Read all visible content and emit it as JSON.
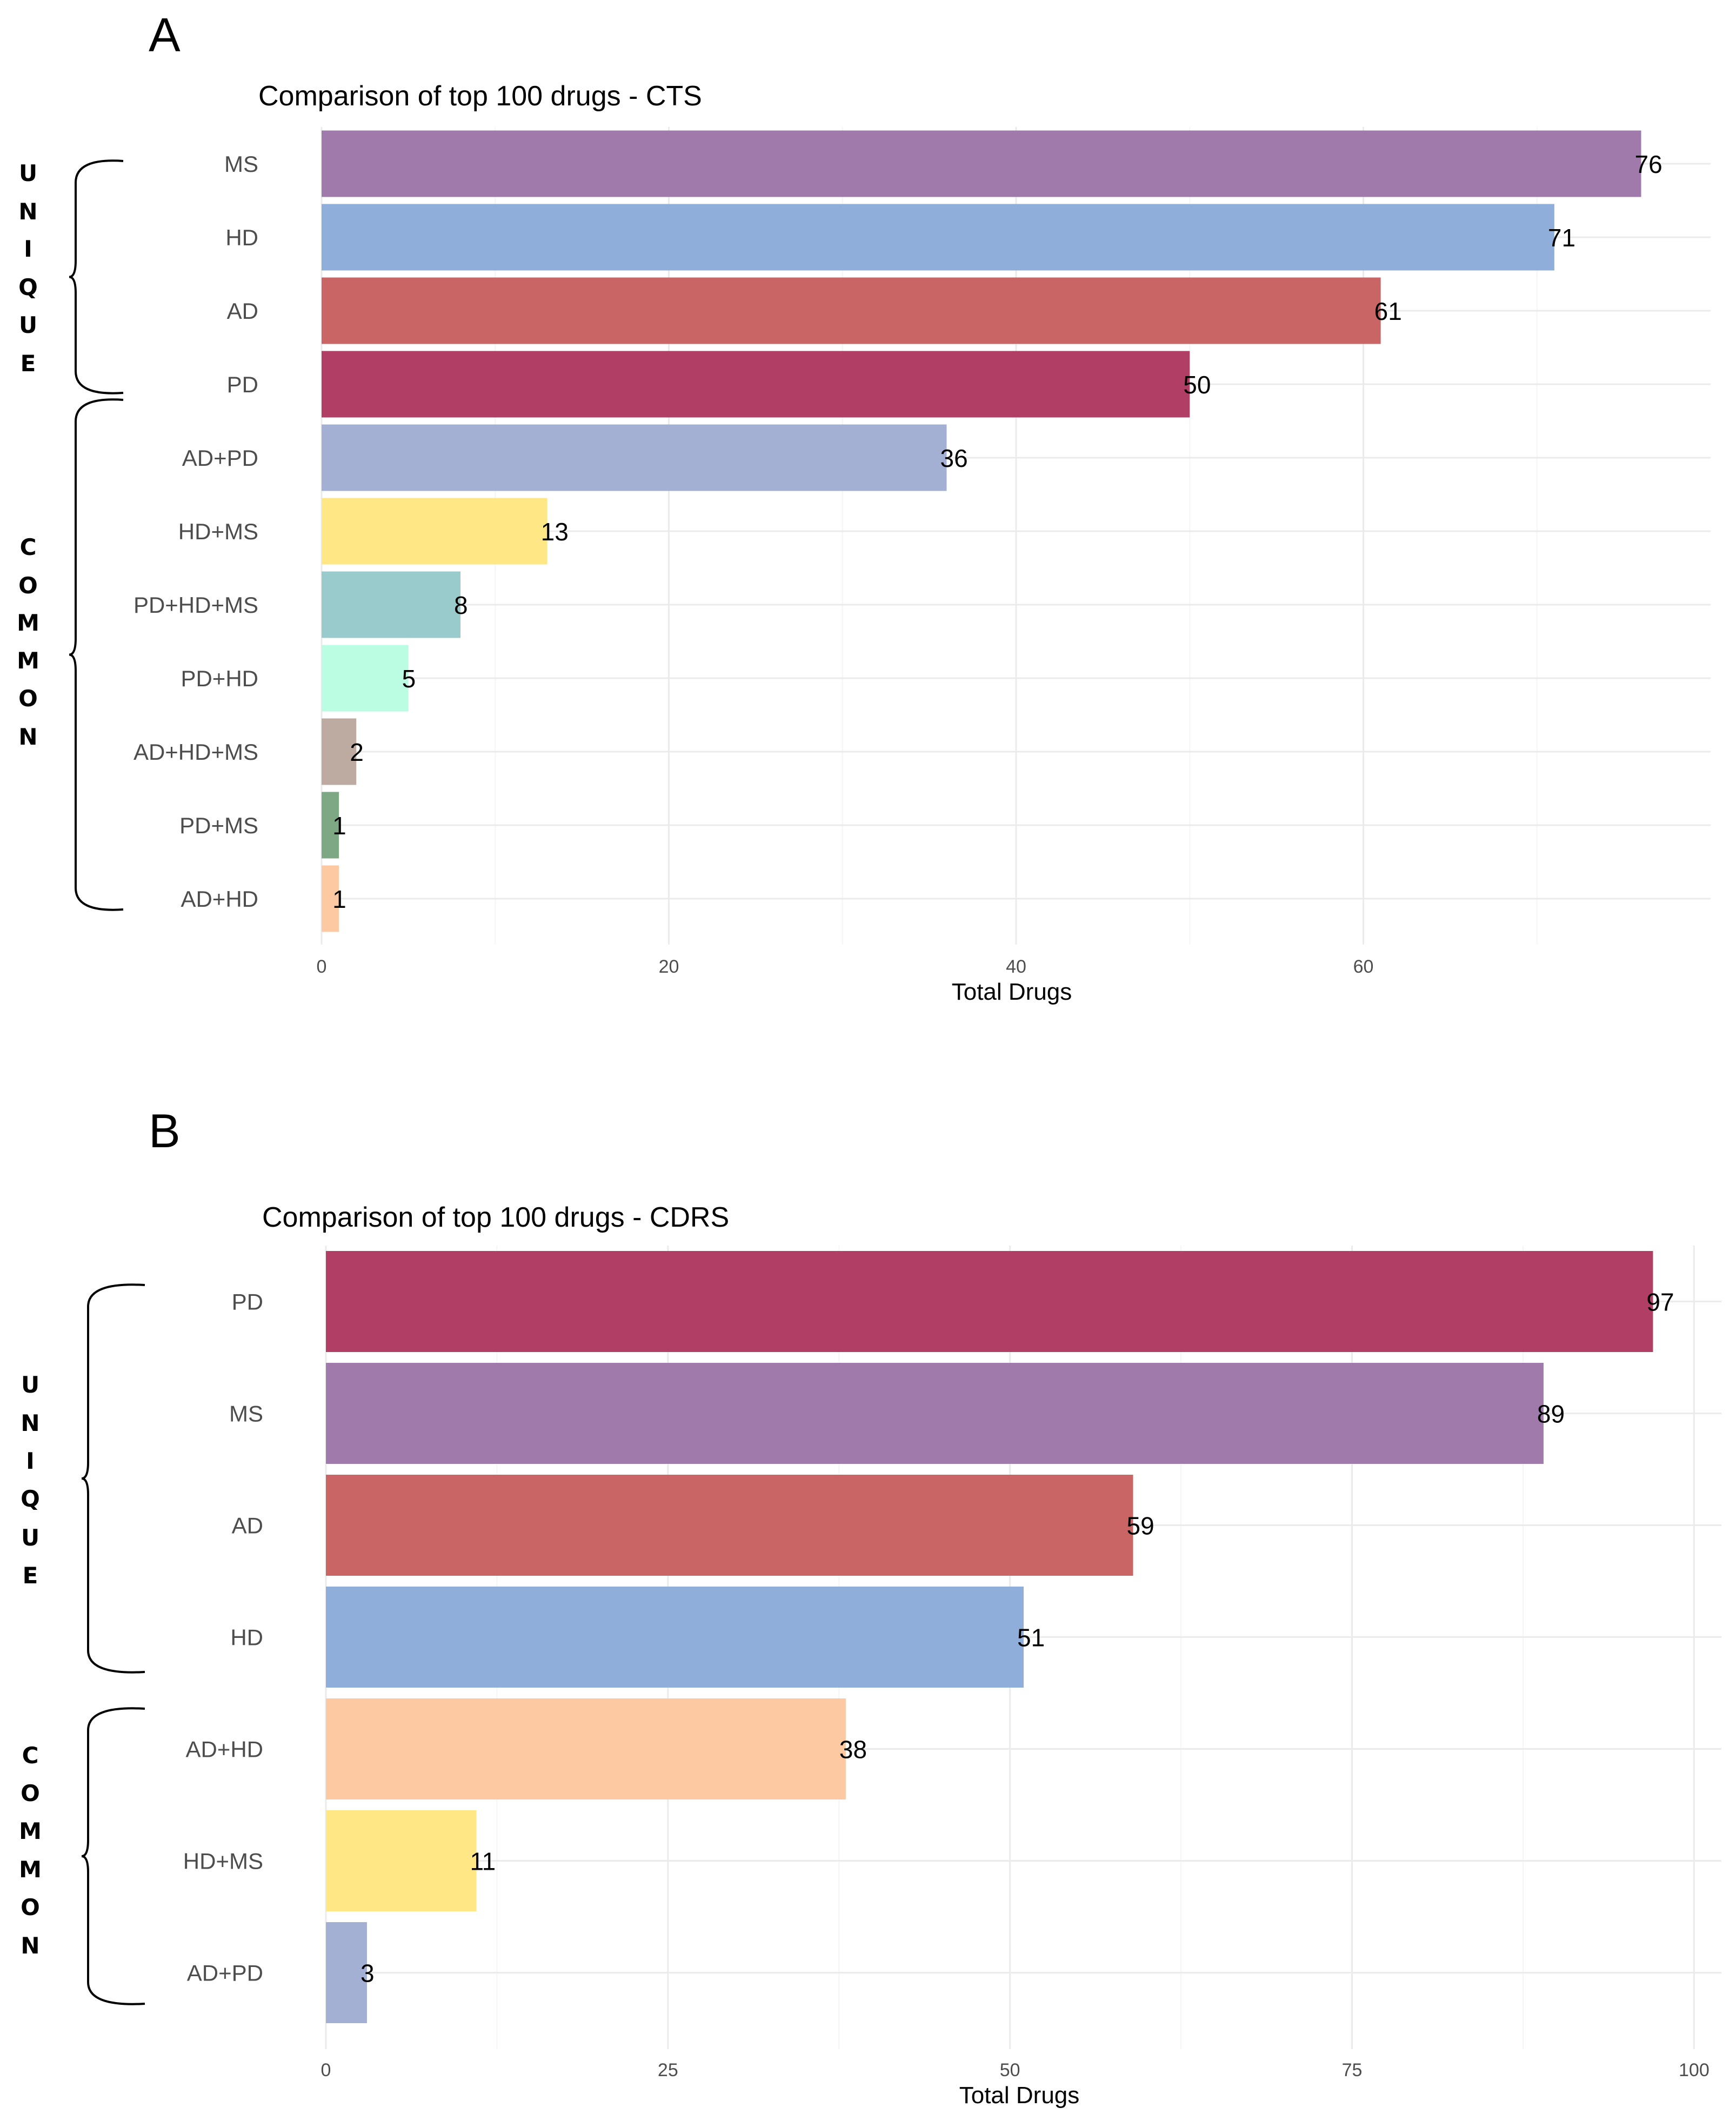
{
  "chart_data": [
    {
      "panel": "A",
      "type": "bar",
      "orientation": "horizontal",
      "title": "Comparison of top 100 drugs - CTS",
      "xlabel": "Total Drugs",
      "ylabel": "",
      "xlim": [
        0,
        80
      ],
      "xticks": [
        0,
        20,
        40,
        60
      ],
      "grid": true,
      "categories": [
        "MS",
        "HD",
        "AD",
        "PD",
        "AD+PD",
        "HD+MS",
        "PD+HD+MS",
        "PD+HD",
        "AD+HD+MS",
        "PD+MS",
        "AD+HD"
      ],
      "values": [
        76,
        71,
        61,
        50,
        36,
        13,
        8,
        5,
        2,
        1,
        1
      ],
      "colors": [
        "#a07aaa",
        "#8faed9",
        "#c96565",
        "#b03e65",
        "#a3b0d4",
        "#ffe785",
        "#9acbcc",
        "#bafde3",
        "#bdaaa0",
        "#7ea883",
        "#fdc9a2"
      ],
      "groups": [
        {
          "label": "UNIQUE",
          "letters": [
            "U",
            "N",
            "I",
            "Q",
            "U",
            "E"
          ],
          "categories": [
            "MS",
            "HD",
            "AD",
            "PD"
          ]
        },
        {
          "label": "COMMON",
          "letters": [
            "C",
            "O",
            "M",
            "M",
            "O",
            "N"
          ],
          "categories": [
            "AD+PD",
            "HD+MS",
            "PD+HD+MS",
            "PD+HD",
            "AD+HD+MS",
            "PD+MS",
            "AD+HD"
          ]
        }
      ]
    },
    {
      "panel": "B",
      "type": "bar",
      "orientation": "horizontal",
      "title": "Comparison of top 100 drugs - CDRS",
      "xlabel": "Total Drugs",
      "ylabel": "",
      "xlim": [
        0,
        102
      ],
      "xticks": [
        0,
        25,
        50,
        75,
        100
      ],
      "grid": true,
      "categories": [
        "PD",
        "MS",
        "AD",
        "HD",
        "AD+HD",
        "HD+MS",
        "AD+PD"
      ],
      "values": [
        97,
        89,
        59,
        51,
        38,
        11,
        3
      ],
      "colors": [
        "#b03e65",
        "#a07aaa",
        "#c96565",
        "#8faed9",
        "#fdc9a2",
        "#ffe785",
        "#a3b0d4"
      ],
      "groups": [
        {
          "label": "UNIQUE",
          "letters": [
            "U",
            "N",
            "I",
            "Q",
            "U",
            "E"
          ],
          "categories": [
            "PD",
            "MS",
            "AD",
            "HD"
          ]
        },
        {
          "label": "COMMON",
          "letters": [
            "C",
            "O",
            "M",
            "M",
            "O",
            "N"
          ],
          "categories": [
            "AD+HD",
            "HD+MS",
            "AD+PD"
          ]
        }
      ]
    }
  ]
}
